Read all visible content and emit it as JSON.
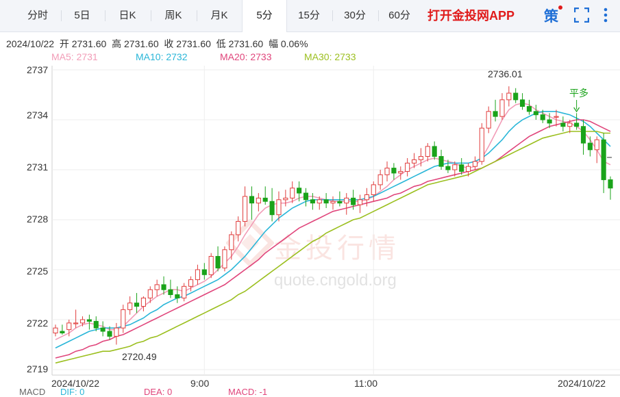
{
  "tabs": [
    {
      "id": "fenshi",
      "label": "分时"
    },
    {
      "id": "5day",
      "label": "5日"
    },
    {
      "id": "dayk",
      "label": "日K"
    },
    {
      "id": "weekk",
      "label": "周K"
    },
    {
      "id": "monthk",
      "label": "月K"
    },
    {
      "id": "5min",
      "label": "5分",
      "active": true
    },
    {
      "id": "15min",
      "label": "15分"
    },
    {
      "id": "30min",
      "label": "30分"
    },
    {
      "id": "60min",
      "label": "60分"
    }
  ],
  "promo": "打开金投网APP",
  "strategy_icon": "策",
  "icons": {
    "fullscreen": "fullscreen-icon",
    "more": "more-vertical-icon"
  },
  "info_line": "2024/10/22  开 2731.60  高 2731.60  收 2731.60  低 2731.60  幅 0.06%",
  "ma": [
    {
      "label": "MA5: 2731",
      "color": "#f29cb7"
    },
    {
      "label": "MA10: 2732",
      "color": "#29b6d8"
    },
    {
      "label": "MA20: 2733",
      "color": "#e0457b"
    },
    {
      "label": "MA30: 2733",
      "color": "#9bbf1e"
    }
  ],
  "watermark": {
    "text": "金投行情",
    "url": "quote.cngold.org"
  },
  "macd": [
    {
      "label": "MACD",
      "color": "#666666"
    },
    {
      "label": "DIF: 0",
      "color": "#29b6d8"
    },
    {
      "label": "DEA: 0",
      "color": "#e0457b"
    },
    {
      "label": "MACD: -1",
      "color": "#e0457b"
    }
  ],
  "colors": {
    "up": "#e03c3c",
    "down": "#1aa31a",
    "grid": "#eeeeee"
  },
  "chart_data": {
    "type": "candlestick",
    "y_ticks": [
      "2737",
      "2734",
      "2731",
      "2728",
      "2725",
      "2722",
      "2719"
    ],
    "ylim": [
      2719,
      2737
    ],
    "x_ticks": [
      {
        "label": "2024/10/22",
        "index": 0
      },
      {
        "label": "9:00",
        "index": 22
      },
      {
        "label": "11:00",
        "index": 47
      },
      {
        "label": "2024/10/22",
        "index": 80
      }
    ],
    "annotations": [
      {
        "label": "2736.01",
        "index": 67,
        "value": 2736.01
      },
      {
        "label": "2720.49",
        "index": 9,
        "value": 2720.49
      },
      {
        "label": "平多",
        "index": 77,
        "value": 2734.2
      }
    ],
    "candles": [
      [
        2721.2,
        2721.7,
        2721.0,
        2721.5
      ],
      [
        2721.3,
        2721.7,
        2721.1,
        2721.2
      ],
      [
        2721.4,
        2722.0,
        2721.0,
        2721.8
      ],
      [
        2721.8,
        2722.6,
        2721.5,
        2721.8
      ],
      [
        2721.8,
        2722.2,
        2721.6,
        2722.0
      ],
      [
        2722.0,
        2722.3,
        2721.4,
        2721.9
      ],
      [
        2721.9,
        2722.2,
        2721.3,
        2721.5
      ],
      [
        2721.5,
        2721.9,
        2721.0,
        2721.3
      ],
      [
        2721.3,
        2721.6,
        2720.8,
        2721.0
      ],
      [
        2721.0,
        2721.8,
        2720.5,
        2721.5
      ],
      [
        2721.5,
        2722.9,
        2721.2,
        2722.6
      ],
      [
        2722.6,
        2723.4,
        2722.3,
        2723.0
      ],
      [
        2723.0,
        2723.6,
        2722.4,
        2722.8
      ],
      [
        2722.8,
        2723.4,
        2722.5,
        2723.3
      ],
      [
        2723.3,
        2724.0,
        2723.0,
        2723.8
      ],
      [
        2723.8,
        2724.4,
        2723.4,
        2724.1
      ],
      [
        2724.1,
        2724.6,
        2723.5,
        2723.8
      ],
      [
        2723.8,
        2724.4,
        2723.3,
        2723.5
      ],
      [
        2723.5,
        2724.0,
        2723.0,
        2723.3
      ],
      [
        2723.3,
        2724.2,
        2723.1,
        2724.0
      ],
      [
        2724.0,
        2724.6,
        2723.7,
        2724.4
      ],
      [
        2724.4,
        2725.3,
        2724.1,
        2725.0
      ],
      [
        2725.0,
        2725.4,
        2724.4,
        2724.7
      ],
      [
        2724.7,
        2726.0,
        2724.5,
        2725.8
      ],
      [
        2725.8,
        2726.4,
        2724.9,
        2725.1
      ],
      [
        2725.1,
        2726.4,
        2724.9,
        2726.2
      ],
      [
        2726.2,
        2727.3,
        2725.6,
        2727.1
      ],
      [
        2727.1,
        2728.2,
        2726.7,
        2727.9
      ],
      [
        2727.9,
        2730.0,
        2727.6,
        2729.4
      ],
      [
        2729.4,
        2730.0,
        2728.0,
        2729.0
      ],
      [
        2729.0,
        2729.6,
        2728.5,
        2729.3
      ],
      [
        2729.3,
        2730.0,
        2728.9,
        2729.1
      ],
      [
        2729.1,
        2729.9,
        2727.9,
        2728.3
      ],
      [
        2728.3,
        2729.7,
        2727.9,
        2729.2
      ],
      [
        2729.2,
        2729.8,
        2728.8,
        2729.3
      ],
      [
        2729.3,
        2730.3,
        2729.0,
        2729.9
      ],
      [
        2729.9,
        2730.3,
        2729.1,
        2729.6
      ],
      [
        2729.6,
        2729.9,
        2728.8,
        2729.2
      ],
      [
        2729.2,
        2729.6,
        2728.6,
        2729.0
      ],
      [
        2729.0,
        2729.4,
        2728.6,
        2729.2
      ],
      [
        2729.2,
        2729.6,
        2728.7,
        2729.0
      ],
      [
        2729.0,
        2729.4,
        2728.6,
        2729.1
      ],
      [
        2729.1,
        2729.7,
        2728.8,
        2729.0
      ],
      [
        2729.0,
        2729.6,
        2728.3,
        2729.3
      ],
      [
        2729.3,
        2729.8,
        2728.6,
        2728.9
      ],
      [
        2728.9,
        2729.5,
        2728.4,
        2729.2
      ],
      [
        2729.2,
        2729.9,
        2728.8,
        2729.5
      ],
      [
        2729.5,
        2730.3,
        2729.1,
        2730.1
      ],
      [
        2730.1,
        2731.0,
        2729.8,
        2730.7
      ],
      [
        2730.7,
        2731.5,
        2730.3,
        2731.1
      ],
      [
        2731.1,
        2731.4,
        2730.4,
        2730.8
      ],
      [
        2730.8,
        2731.2,
        2730.4,
        2730.9
      ],
      [
        2730.9,
        2731.7,
        2730.6,
        2731.4
      ],
      [
        2731.4,
        2732.0,
        2731.1,
        2731.6
      ],
      [
        2731.6,
        2732.3,
        2731.2,
        2731.8
      ],
      [
        2731.8,
        2732.6,
        2731.5,
        2732.4
      ],
      [
        2732.4,
        2732.7,
        2731.6,
        2731.8
      ],
      [
        2731.8,
        2732.2,
        2731.0,
        2731.2
      ],
      [
        2731.2,
        2731.6,
        2730.8,
        2731.0
      ],
      [
        2731.0,
        2731.5,
        2730.6,
        2731.3
      ],
      [
        2731.3,
        2731.7,
        2730.7,
        2730.9
      ],
      [
        2730.9,
        2731.4,
        2730.6,
        2731.2
      ],
      [
        2731.2,
        2731.8,
        2731.0,
        2731.5
      ],
      [
        2731.5,
        2733.8,
        2731.3,
        2733.5
      ],
      [
        2733.5,
        2734.8,
        2733.2,
        2734.5
      ],
      [
        2734.5,
        2735.2,
        2733.9,
        2734.2
      ],
      [
        2734.2,
        2735.6,
        2734.0,
        2735.2
      ],
      [
        2735.2,
        2736.01,
        2734.8,
        2735.6
      ],
      [
        2735.6,
        2735.9,
        2735.0,
        2735.2
      ],
      [
        2735.2,
        2735.6,
        2734.6,
        2734.8
      ],
      [
        2734.8,
        2735.2,
        2734.3,
        2734.5
      ],
      [
        2734.5,
        2734.9,
        2734.0,
        2734.3
      ],
      [
        2734.3,
        2734.6,
        2733.8,
        2734.0
      ],
      [
        2734.0,
        2734.4,
        2733.5,
        2733.8
      ],
      [
        2734.2,
        2734.6,
        2733.6,
        2734.2
      ],
      [
        2733.8,
        2734.2,
        2733.3,
        2733.6
      ],
      [
        2733.6,
        2734.0,
        2733.2,
        2733.8
      ],
      [
        2733.8,
        2734.4,
        2733.4,
        2733.6
      ],
      [
        2733.6,
        2734.0,
        2731.9,
        2732.6
      ],
      [
        2732.6,
        2733.0,
        2731.8,
        2732.2
      ],
      [
        2732.2,
        2733.0,
        2731.4,
        2732.8
      ],
      [
        2732.8,
        2733.2,
        2729.6,
        2730.4
      ],
      [
        2730.4,
        2730.6,
        2729.2,
        2729.9
      ]
    ],
    "ma_series": [
      {
        "name": "MA5",
        "start": 0,
        "values": [
          2720.8,
          2721.0,
          2721.2,
          2721.5,
          2721.7,
          2721.8,
          2721.7,
          2721.6,
          2721.4,
          2721.4,
          2721.6,
          2722.0,
          2722.4,
          2722.8,
          2723.1,
          2723.4,
          2723.6,
          2723.8,
          2723.8,
          2723.7,
          2723.9,
          2724.1,
          2724.3,
          2724.6,
          2725.0,
          2725.4,
          2725.8,
          2726.4,
          2727.1,
          2727.7,
          2728.3,
          2728.7,
          2728.9,
          2729.0,
          2729.0,
          2729.1,
          2729.3,
          2729.4,
          2729.4,
          2729.3,
          2729.2,
          2729.1,
          2729.1,
          2729.1,
          2729.1,
          2729.1,
          2729.2,
          2729.4,
          2729.7,
          2730.0,
          2730.4,
          2730.7,
          2731.0,
          2731.2,
          2731.4,
          2731.6,
          2731.7,
          2731.6,
          2731.5,
          2731.4,
          2731.2,
          2731.1,
          2731.2,
          2731.7,
          2732.4,
          2733.2,
          2734.0,
          2734.6,
          2734.9,
          2735.0,
          2734.9,
          2734.6,
          2734.4,
          2734.2,
          2734.0,
          2733.9,
          2733.8,
          2733.6,
          2733.3,
          2732.8,
          2732.2,
          2731.5,
          2731.3
        ]
      },
      {
        "name": "MA10",
        "start": 0,
        "values": [
          2720.3,
          2720.5,
          2720.7,
          2720.9,
          2721.1,
          2721.3,
          2721.4,
          2721.5,
          2721.5,
          2721.5,
          2721.6,
          2721.7,
          2721.9,
          2722.1,
          2722.4,
          2722.6,
          2722.9,
          2723.1,
          2723.3,
          2723.4,
          2723.6,
          2723.8,
          2724.0,
          2724.2,
          2724.4,
          2724.7,
          2725.0,
          2725.4,
          2725.8,
          2726.3,
          2726.8,
          2727.3,
          2727.7,
          2728.1,
          2728.4,
          2728.7,
          2728.9,
          2729.1,
          2729.2,
          2729.2,
          2729.2,
          2729.2,
          2729.2,
          2729.2,
          2729.2,
          2729.2,
          2729.3,
          2729.4,
          2729.6,
          2729.8,
          2730.0,
          2730.2,
          2730.4,
          2730.6,
          2730.8,
          2731.0,
          2731.2,
          2731.3,
          2731.4,
          2731.4,
          2731.4,
          2731.4,
          2731.5,
          2731.7,
          2732.0,
          2732.4,
          2732.8,
          2733.3,
          2733.7,
          2734.0,
          2734.2,
          2734.4,
          2734.5,
          2734.5,
          2734.5,
          2734.4,
          2734.3,
          2734.1,
          2733.9,
          2733.6,
          2733.2,
          2732.8,
          2732.4
        ]
      },
      {
        "name": "MA20",
        "start": 0,
        "values": [
          2719.7,
          2719.8,
          2719.9,
          2720.1,
          2720.2,
          2720.4,
          2720.5,
          2720.7,
          2720.8,
          2721.0,
          2721.1,
          2721.3,
          2721.5,
          2721.7,
          2721.9,
          2722.1,
          2722.3,
          2722.5,
          2722.7,
          2722.9,
          2723.1,
          2723.3,
          2723.5,
          2723.7,
          2723.9,
          2724.1,
          2724.4,
          2724.7,
          2725.0,
          2725.3,
          2725.6,
          2726.0,
          2726.3,
          2726.6,
          2726.9,
          2727.2,
          2727.5,
          2727.7,
          2727.9,
          2728.1,
          2728.3,
          2728.5,
          2728.6,
          2728.7,
          2728.8,
          2728.9,
          2729.0,
          2729.1,
          2729.2,
          2729.3,
          2729.5,
          2729.6,
          2729.8,
          2730.0,
          2730.1,
          2730.3,
          2730.4,
          2730.5,
          2730.6,
          2730.7,
          2730.8,
          2730.9,
          2731.0,
          2731.1,
          2731.3,
          2731.5,
          2731.8,
          2732.1,
          2732.4,
          2732.7,
          2733.0,
          2733.2,
          2733.4,
          2733.6,
          2733.7,
          2733.8,
          2733.9,
          2734.0,
          2734.0,
          2733.9,
          2733.7,
          2733.5,
          2733.3
        ]
      },
      {
        "name": "MA30",
        "start": 0,
        "values": [
          2719.4,
          2719.5,
          2719.6,
          2719.7,
          2719.8,
          2719.9,
          2720.0,
          2720.1,
          2720.1,
          2720.2,
          2720.3,
          2720.4,
          2720.6,
          2720.7,
          2720.9,
          2721.0,
          2721.2,
          2721.4,
          2721.6,
          2721.8,
          2722.0,
          2722.2,
          2722.4,
          2722.6,
          2722.8,
          2723.0,
          2723.2,
          2723.5,
          2723.7,
          2724.0,
          2724.3,
          2724.6,
          2724.9,
          2725.2,
          2725.5,
          2725.8,
          2726.1,
          2726.4,
          2726.7,
          2726.9,
          2727.2,
          2727.4,
          2727.6,
          2727.8,
          2728.0,
          2728.1,
          2728.3,
          2728.5,
          2728.7,
          2728.9,
          2729.1,
          2729.3,
          2729.5,
          2729.7,
          2729.9,
          2730.1,
          2730.2,
          2730.3,
          2730.4,
          2730.5,
          2730.6,
          2730.7,
          2730.9,
          2731.1,
          2731.3,
          2731.5,
          2731.7,
          2731.9,
          2732.1,
          2732.3,
          2732.5,
          2732.7,
          2732.9,
          2733.0,
          2733.1,
          2733.2,
          2733.3,
          2733.3,
          2733.3,
          2733.3,
          2733.3,
          2733.2,
          2733.2
        ]
      }
    ]
  }
}
